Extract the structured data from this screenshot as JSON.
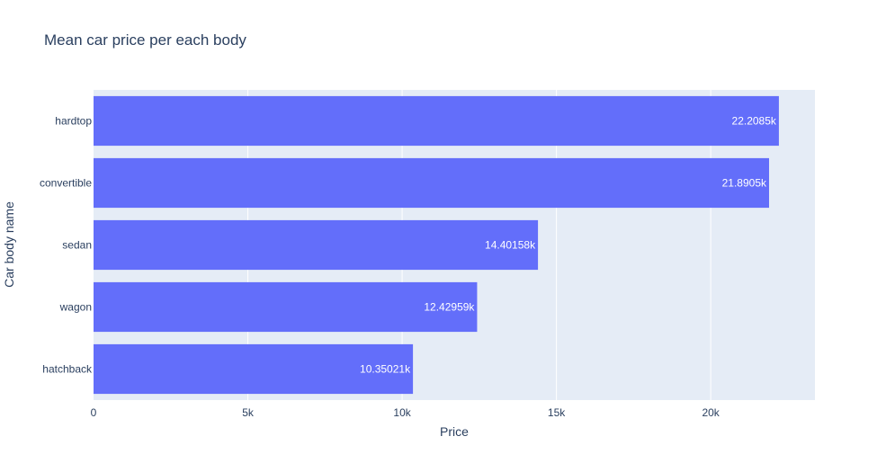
{
  "chart_data": {
    "type": "bar",
    "orientation": "horizontal",
    "title": "Mean car price per each body",
    "xlabel": "Price",
    "ylabel": "Car body name",
    "categories": [
      "hardtop",
      "convertible",
      "sedan",
      "wagon",
      "hatchback"
    ],
    "values": [
      22208.5,
      21890.5,
      14401.58,
      12429.59,
      10350.21
    ],
    "data_labels": [
      "22.2085k",
      "21.8905k",
      "14.40158k",
      "12.42959k",
      "10.35021k"
    ],
    "xlim": [
      0,
      23377
    ],
    "x_ticks": [
      0,
      5000,
      10000,
      15000,
      20000
    ],
    "x_tick_labels": [
      "0",
      "5k",
      "10k",
      "15k",
      "20k"
    ],
    "grid": true,
    "colors": {
      "bar": "#636efa",
      "plot_bg": "#e5ecf6",
      "grid": "#ffffff",
      "text": "#2a3f5f",
      "bar_text": "#ffffff"
    }
  }
}
